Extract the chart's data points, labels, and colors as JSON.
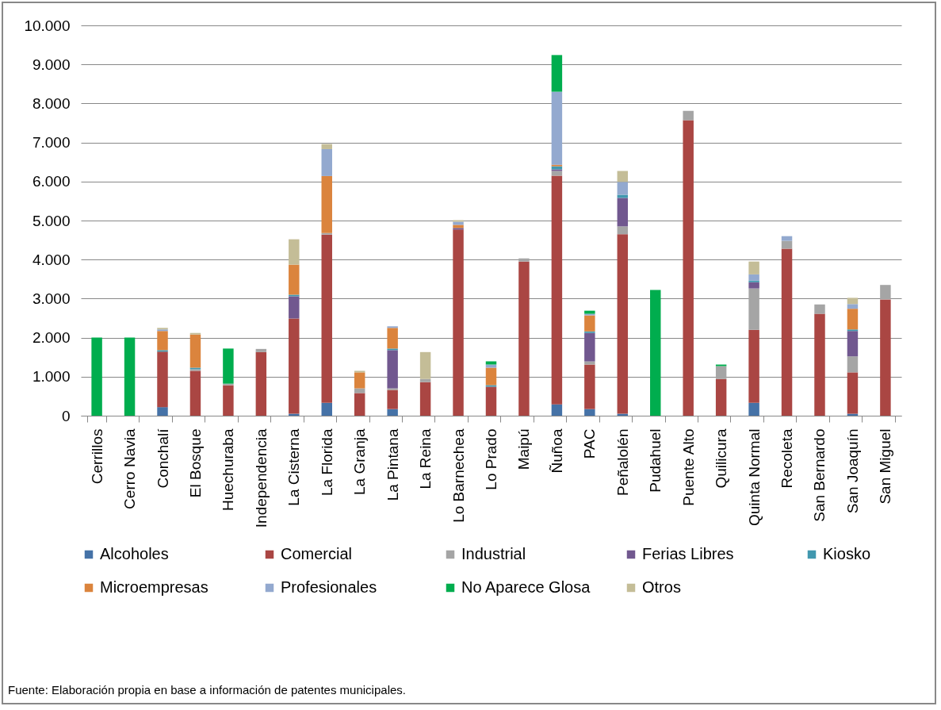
{
  "chart_data": {
    "type": "bar",
    "stacked": true,
    "categories": [
      "Cerrillos",
      "Cerro Navia",
      "Conchalí",
      "El Bosque",
      "Huechuraba",
      "Independencia",
      "La Cisterna",
      "La Florida",
      "La Granja",
      "La Pintana",
      "La Reina",
      "Lo Barnechea",
      "Lo Prado",
      "Maipú",
      "Ñuñoa",
      "PAC",
      "Peñalolén",
      "Pudahuel",
      "Puente Alto",
      "Quilicura",
      "Quinta Normal",
      "Recoleta",
      "San Bernardo",
      "San Joaquín",
      "San Miguel"
    ],
    "series": [
      {
        "name": "Alcoholes",
        "color": "#4572a7",
        "values": [
          0,
          0,
          220,
          0,
          0,
          0,
          50,
          330,
          0,
          170,
          0,
          0,
          0,
          0,
          290,
          170,
          50,
          0,
          0,
          0,
          330,
          0,
          0,
          50,
          0
        ]
      },
      {
        "name": "Comercial",
        "color": "#aa4643",
        "values": [
          0,
          0,
          1420,
          1150,
          780,
          1630,
          2440,
          4310,
          580,
          490,
          860,
          4770,
          740,
          3950,
          5860,
          1140,
          4600,
          0,
          7570,
          940,
          1870,
          4280,
          2610,
          1060,
          2980
        ]
      },
      {
        "name": "Industrial",
        "color": "#a5a5a5",
        "values": [
          0,
          0,
          0,
          40,
          40,
          80,
          0,
          40,
          120,
          40,
          80,
          0,
          0,
          80,
          120,
          80,
          200,
          0,
          240,
          330,
          1060,
          200,
          240,
          410,
          370
        ]
      },
      {
        "name": "Ferias Libres",
        "color": "#71588f",
        "values": [
          0,
          0,
          0,
          0,
          0,
          0,
          570,
          0,
          0,
          980,
          0,
          40,
          0,
          0,
          40,
          730,
          730,
          0,
          0,
          0,
          160,
          0,
          0,
          650,
          0
        ]
      },
      {
        "name": "Kiosko",
        "color": "#4198af",
        "values": [
          0,
          0,
          40,
          40,
          0,
          0,
          40,
          0,
          0,
          40,
          0,
          0,
          40,
          0,
          80,
          40,
          80,
          0,
          0,
          0,
          40,
          0,
          0,
          40,
          0
        ]
      },
      {
        "name": "Microempresas",
        "color": "#db843d",
        "values": [
          0,
          0,
          490,
          850,
          0,
          0,
          770,
          1460,
          410,
          530,
          0,
          80,
          450,
          0,
          40,
          410,
          0,
          0,
          0,
          0,
          0,
          0,
          0,
          530,
          0
        ]
      },
      {
        "name": "Profesionales",
        "color": "#93a9cf",
        "values": [
          0,
          0,
          40,
          0,
          0,
          0,
          0,
          690,
          0,
          40,
          0,
          80,
          80,
          0,
          1870,
          40,
          330,
          0,
          0,
          0,
          160,
          120,
          0,
          120,
          0
        ]
      },
      {
        "name": "No Aparece Glosa",
        "color": "#00ad4e",
        "values": [
          2000,
          2000,
          0,
          0,
          900,
          0,
          0,
          0,
          0,
          0,
          0,
          0,
          80,
          0,
          940,
          80,
          0,
          3220,
          0,
          40,
          0,
          0,
          0,
          0,
          0
        ]
      },
      {
        "name": "Otros",
        "color": "#c4bd97",
        "values": [
          0,
          0,
          40,
          40,
          0,
          0,
          650,
          130,
          40,
          0,
          690,
          40,
          0,
          0,
          0,
          0,
          280,
          0,
          0,
          0,
          330,
          0,
          0,
          160,
          0
        ]
      }
    ],
    "ylim": [
      0,
      10000
    ],
    "yticks": [
      {
        "value": 0,
        "label": "0"
      },
      {
        "value": 1000,
        "label": "1.000"
      },
      {
        "value": 2000,
        "label": "2.000"
      },
      {
        "value": 3000,
        "label": "3.000"
      },
      {
        "value": 4000,
        "label": "4.000"
      },
      {
        "value": 5000,
        "label": "5.000"
      },
      {
        "value": 6000,
        "label": "6.000"
      },
      {
        "value": 7000,
        "label": "7.000"
      },
      {
        "value": 8000,
        "label": "8.000"
      },
      {
        "value": 9000,
        "label": "9.000"
      },
      {
        "value": 10000,
        "label": "10.000"
      }
    ],
    "grid": "y",
    "legend": "bottom",
    "annotations": [
      "Fuente: Elaboración propia en base a información de patentes municipales."
    ]
  }
}
